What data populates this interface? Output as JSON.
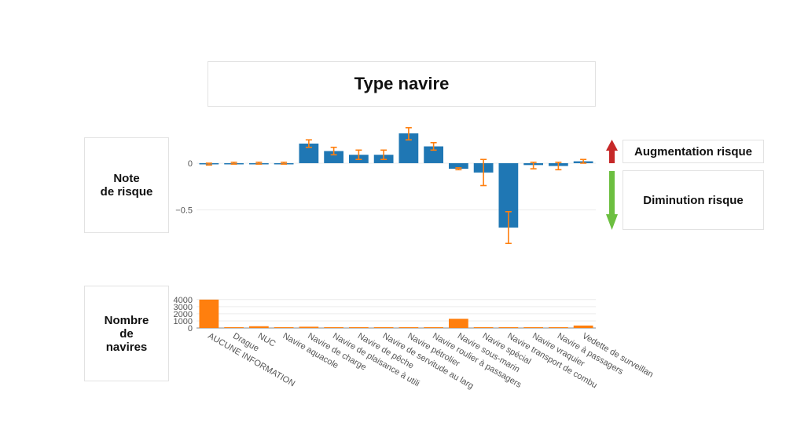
{
  "chart_title": "Type navire",
  "labels": {
    "note": "Note\nde risque",
    "count": "Nombre\nde\nnavires",
    "increase": "Augmentation risque",
    "decrease": "Diminution risque"
  },
  "colors": {
    "bar": "#1f77b4",
    "error": "#ff7f0e",
    "count_bar": "#ff7f0e",
    "up_arrow": "#c62828",
    "down_arrow": "#6cbf40"
  },
  "chart_data": [
    {
      "type": "bar",
      "name": "risk-score",
      "categories": [
        "AUCUNE INFORMATION",
        "Drague",
        "NUC",
        "Navire aquacole",
        "Navire de charge",
        "Navire de plaisance à utilisation…",
        "Navire de pêche",
        "Navire de servitude au large",
        "Navire pétrolier",
        "Navire roulier à passagers",
        "Navire sous-marin",
        "Navire spécial",
        "Navire transport de combustible",
        "Navire vraquier",
        "Navire à passagers",
        "Vedette de surveillance"
      ],
      "categories_display": [
        "AUCUNE INFORMATION",
        "Drague",
        "NUC",
        "Navire aquacole",
        "Navire de charge",
        "Navire de plaisance à utili",
        "Navire de pêche",
        "Navire de servitude au larg",
        "Navire pétrolier",
        "Navire roulier à passagers",
        "Navire sous-marin",
        "Navire spécial",
        "Navire transport de combu",
        "Navire vraquier",
        "Navire à passagers",
        "Vedette de surveillan"
      ],
      "values": [
        -0.01,
        0.0,
        0.0,
        0.0,
        0.21,
        0.13,
        0.09,
        0.09,
        0.32,
        0.18,
        -0.06,
        -0.1,
        -0.69,
        -0.02,
        -0.03,
        0.02
      ],
      "error_low": [
        -0.02,
        -0.01,
        -0.01,
        -0.01,
        0.17,
        0.09,
        0.04,
        0.04,
        0.25,
        0.14,
        -0.07,
        -0.24,
        -0.86,
        -0.06,
        -0.07,
        0.0
      ],
      "error_high": [
        0.0,
        0.01,
        0.01,
        0.01,
        0.25,
        0.17,
        0.14,
        0.14,
        0.38,
        0.22,
        -0.05,
        0.04,
        -0.52,
        0.01,
        0.01,
        0.04
      ],
      "ylim": [
        -0.9,
        0.42
      ],
      "yticks": [
        0,
        -0.5
      ],
      "ytick_labels": [
        "0",
        "−0.5"
      ],
      "grid": true
    },
    {
      "type": "bar",
      "name": "vessel-count",
      "categories": [
        "AUCUNE INFORMATION",
        "Drague",
        "NUC",
        "Navire aquacole",
        "Navire de charge",
        "Navire de plaisance à utilisation…",
        "Navire de pêche",
        "Navire de servitude au large",
        "Navire pétrolier",
        "Navire roulier à passagers",
        "Navire sous-marin",
        "Navire spécial",
        "Navire transport de combustible",
        "Navire vraquier",
        "Navire à passagers",
        "Vedette de surveillance"
      ],
      "values": [
        4000,
        30,
        250,
        10,
        180,
        20,
        120,
        40,
        100,
        80,
        1300,
        20,
        20,
        15,
        30,
        350
      ],
      "ylim": [
        0,
        4200
      ],
      "yticks": [
        0,
        1000,
        2000,
        3000,
        4000
      ],
      "ytick_labels": [
        "0",
        "1000",
        "2000",
        "3000",
        "4000"
      ],
      "grid": true
    }
  ]
}
